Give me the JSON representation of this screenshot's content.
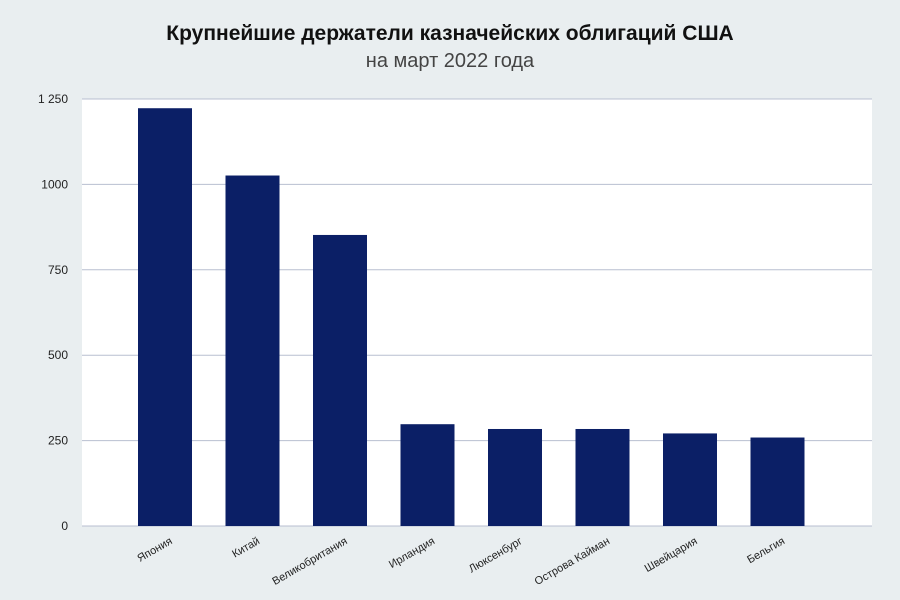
{
  "chart_data": {
    "type": "bar",
    "title": "Крупнейшие держатели казначейских облигаций США",
    "subtitle": "на март 2022 года",
    "xlabel": "",
    "ylabel": "",
    "categories": [
      "Япония",
      "Китай",
      "Великобритания",
      "Ирландия",
      "Люксенбург",
      "Острова Кайман",
      "Швейцария",
      "Бельгия"
    ],
    "values": [
      1223,
      1026,
      852,
      298,
      284,
      284,
      271,
      259
    ],
    "ylim": [
      0,
      1250
    ],
    "yticks": [
      0,
      250,
      500,
      750,
      1000,
      1250
    ],
    "ytick_labels": [
      "0",
      "250",
      "500",
      "750",
      "1000",
      "1 250"
    ],
    "grid": true,
    "bar_color": "#0b1f66",
    "grid_color": "#b8bfd0",
    "plot_background": "#ffffff",
    "page_background": "#e9eef0"
  }
}
